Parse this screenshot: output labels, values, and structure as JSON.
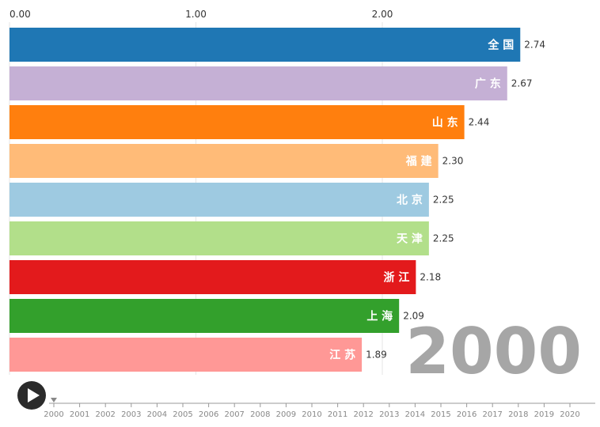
{
  "chart_data": {
    "type": "bar",
    "orientation": "horizontal",
    "x_ticks": [
      "0.00",
      "1.00",
      "2.00"
    ],
    "xlim": [
      0,
      2.74
    ],
    "grid": true,
    "categories": [
      "全 国",
      "广 东",
      "山 东",
      "福 建",
      "北 京",
      "天 津",
      "浙 江",
      "上 海",
      "江 苏"
    ],
    "values": [
      2.74,
      2.67,
      2.44,
      2.3,
      2.25,
      2.25,
      2.18,
      2.09,
      1.89
    ],
    "value_labels": [
      "2.74",
      "2.67",
      "2.44",
      "2.30",
      "2.25",
      "2.25",
      "2.18",
      "2.09",
      "1.89"
    ],
    "colors": [
      "#1f77b4",
      "#c5b0d5",
      "#ff7f0e",
      "#ffbb78",
      "#9ecae1",
      "#b2df8a",
      "#e31a1c",
      "#33a02c",
      "#ff9896"
    ],
    "current_year": "2000"
  },
  "timeline": {
    "years": [
      "2000",
      "2001",
      "2002",
      "2003",
      "2004",
      "2005",
      "2006",
      "2007",
      "2008",
      "2009",
      "2010",
      "2011",
      "2012",
      "2013",
      "2014",
      "2015",
      "2016",
      "2017",
      "2018",
      "2019",
      "2020"
    ],
    "current_year": "2000",
    "play_icon": "play-icon"
  }
}
